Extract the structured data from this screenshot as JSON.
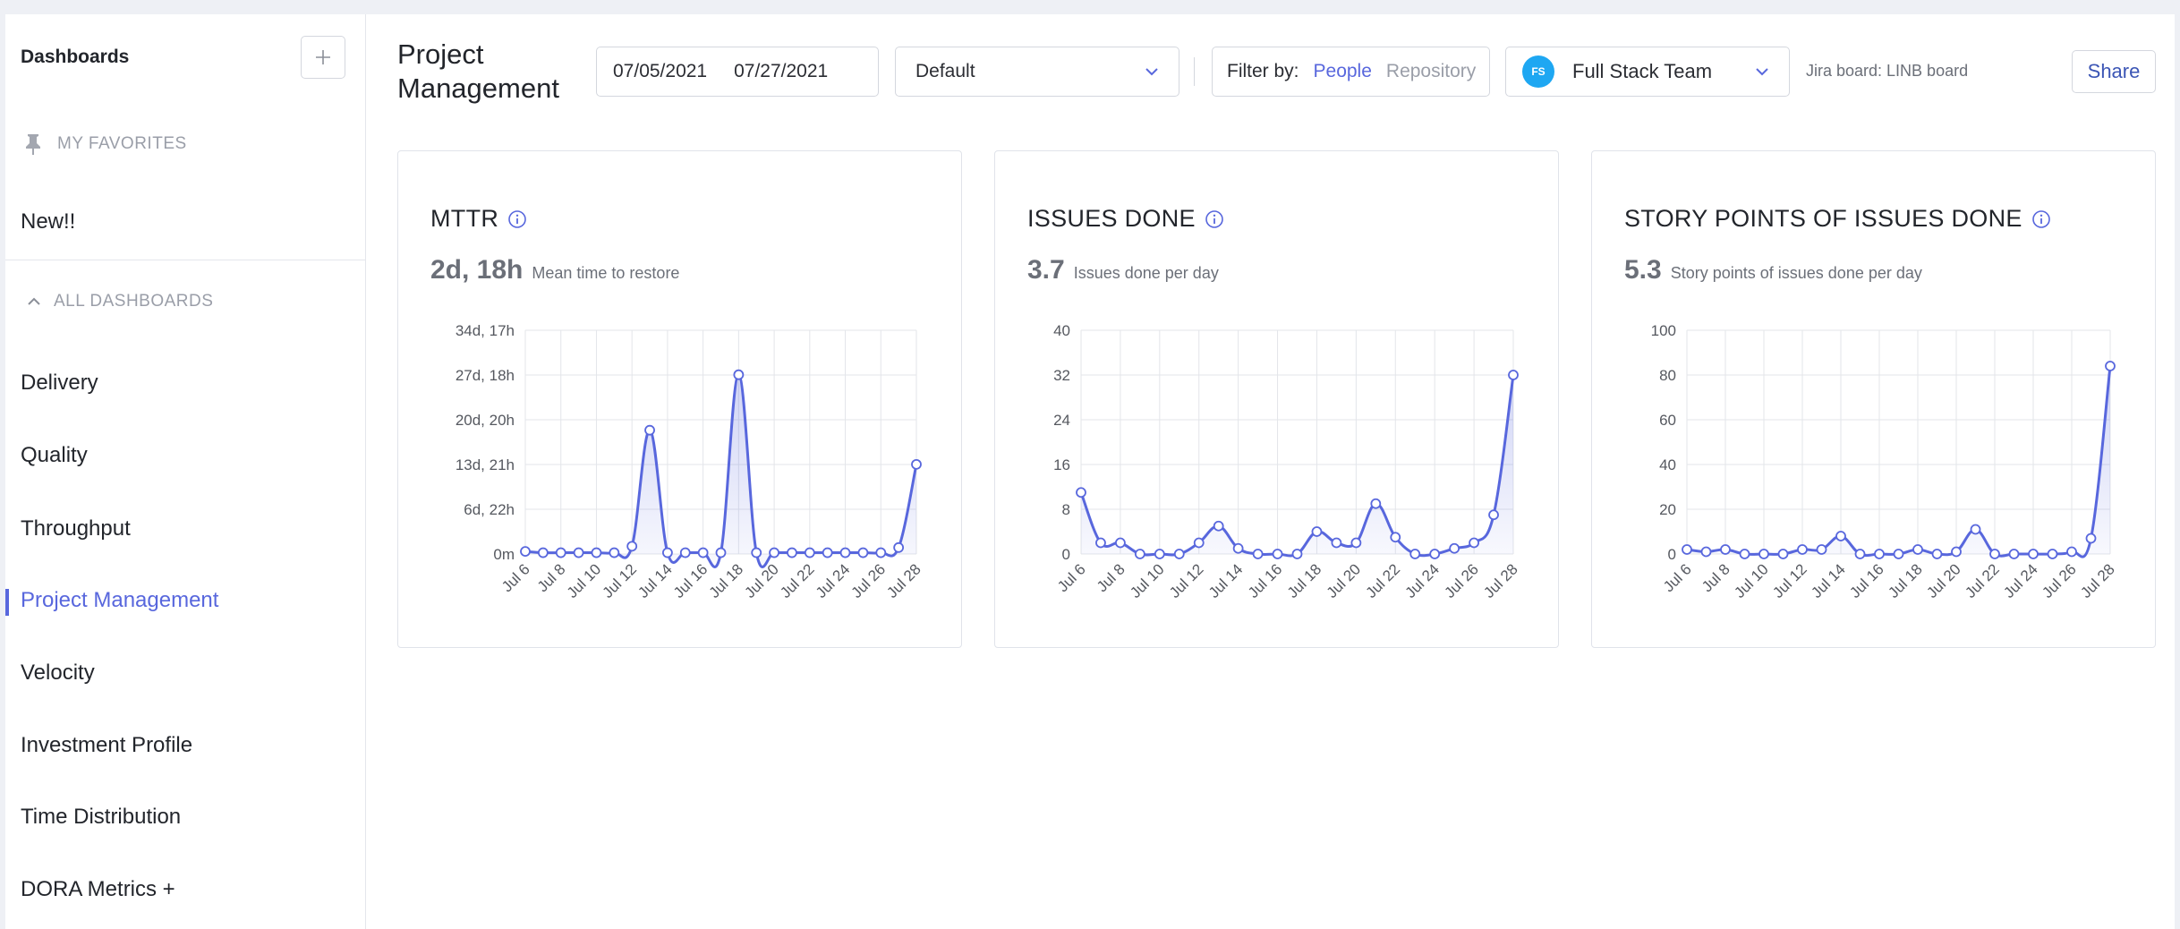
{
  "sidebar": {
    "title": "Dashboards",
    "favorites_label": "MY FAVORITES",
    "new_item": "New!!",
    "all_label": "ALL DASHBOARDS",
    "items": [
      {
        "label": "Delivery"
      },
      {
        "label": "Quality"
      },
      {
        "label": "Throughput"
      },
      {
        "label": "Project Management"
      },
      {
        "label": "Velocity"
      },
      {
        "label": "Investment Profile"
      },
      {
        "label": "Time Distribution"
      },
      {
        "label": "DORA Metrics +"
      }
    ],
    "active_item": "Project Management"
  },
  "header": {
    "title": "Project Management",
    "date_start": "07/05/2021",
    "date_end": "07/27/2021",
    "view_select": "Default",
    "filter_label": "Filter by:",
    "filter_people": "People",
    "filter_repository": "Repository",
    "team_initials": "FS",
    "team_name": "Full Stack Team",
    "jira_board": "Jira board: LINB board",
    "share_label": "Share"
  },
  "colors": {
    "accent": "#5867dd",
    "avatar": "#1ea7f2",
    "line": "#5867dd"
  },
  "cards": [
    {
      "title": "MTTR",
      "value": "2d, 18h",
      "desc": "Mean time to restore"
    },
    {
      "title": "ISSUES DONE",
      "value": "3.7",
      "desc": "Issues done per day"
    },
    {
      "title": "STORY POINTS OF ISSUES DONE",
      "value": "5.3",
      "desc": "Story points of issues done per day"
    }
  ],
  "chart_data": [
    {
      "type": "area",
      "ylim": [
        0,
        34.7
      ],
      "y_ticks": [
        "0m",
        "6d, 22h",
        "13d, 21h",
        "20d, 20h",
        "27d, 18h",
        "34d, 17h"
      ],
      "x_ticks": [
        "Jul 6",
        "Jul 8",
        "Jul 10",
        "Jul 12",
        "Jul 14",
        "Jul 16",
        "Jul 18",
        "Jul 20",
        "Jul 22",
        "Jul 24",
        "Jul 26",
        "Jul 28"
      ],
      "x": [
        "Jul 6",
        "Jul 7",
        "Jul 8",
        "Jul 9",
        "Jul 10",
        "Jul 11",
        "Jul 12",
        "Jul 13",
        "Jul 14",
        "Jul 15",
        "Jul 16",
        "Jul 17",
        "Jul 18",
        "Jul 19",
        "Jul 20",
        "Jul 21",
        "Jul 22",
        "Jul 23",
        "Jul 24",
        "Jul 25",
        "Jul 26",
        "Jul 27",
        "Jul 28"
      ],
      "values": [
        0.4,
        0.2,
        0.2,
        0.2,
        0.2,
        0.2,
        1.2,
        19.2,
        0.2,
        0.2,
        0.2,
        0.2,
        27.8,
        0.2,
        0.2,
        0.2,
        0.2,
        0.2,
        0.2,
        0.2,
        0.2,
        1.0,
        13.9
      ]
    },
    {
      "type": "area",
      "ylim": [
        0,
        40
      ],
      "y_ticks": [
        "0",
        "8",
        "16",
        "24",
        "32",
        "40"
      ],
      "x_ticks": [
        "Jul 6",
        "Jul 8",
        "Jul 10",
        "Jul 12",
        "Jul 14",
        "Jul 16",
        "Jul 18",
        "Jul 20",
        "Jul 22",
        "Jul 24",
        "Jul 26",
        "Jul 28"
      ],
      "x": [
        "Jul 6",
        "Jul 7",
        "Jul 8",
        "Jul 9",
        "Jul 10",
        "Jul 11",
        "Jul 12",
        "Jul 13",
        "Jul 14",
        "Jul 15",
        "Jul 16",
        "Jul 17",
        "Jul 18",
        "Jul 19",
        "Jul 20",
        "Jul 21",
        "Jul 22",
        "Jul 23",
        "Jul 24",
        "Jul 25",
        "Jul 26",
        "Jul 27",
        "Jul 28"
      ],
      "values": [
        11,
        2,
        2,
        0,
        0,
        0,
        2,
        5,
        1,
        0,
        0,
        0,
        4,
        2,
        2,
        9,
        3,
        0,
        0,
        1,
        2,
        7,
        32
      ]
    },
    {
      "type": "area",
      "ylim": [
        0,
        100
      ],
      "y_ticks": [
        "0",
        "20",
        "40",
        "60",
        "80",
        "100"
      ],
      "x_ticks": [
        "Jul 6",
        "Jul 8",
        "Jul 10",
        "Jul 12",
        "Jul 14",
        "Jul 16",
        "Jul 18",
        "Jul 20",
        "Jul 22",
        "Jul 24",
        "Jul 26",
        "Jul 28"
      ],
      "x": [
        "Jul 6",
        "Jul 7",
        "Jul 8",
        "Jul 9",
        "Jul 10",
        "Jul 11",
        "Jul 12",
        "Jul 13",
        "Jul 14",
        "Jul 15",
        "Jul 16",
        "Jul 17",
        "Jul 18",
        "Jul 19",
        "Jul 20",
        "Jul 21",
        "Jul 22",
        "Jul 23",
        "Jul 24",
        "Jul 25",
        "Jul 26",
        "Jul 27",
        "Jul 28"
      ],
      "values": [
        2,
        1,
        2,
        0,
        0,
        0,
        2,
        2,
        8,
        0,
        0,
        0,
        2,
        0,
        1,
        11,
        0,
        0,
        0,
        0,
        1,
        7,
        84
      ]
    }
  ]
}
